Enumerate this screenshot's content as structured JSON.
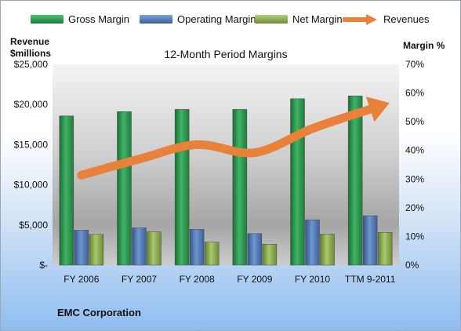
{
  "chart_data": {
    "type": "bar",
    "title": "12-Month Period Margins",
    "categories": [
      "FY 2006",
      "FY 2007",
      "FY 2008",
      "FY 2009",
      "FY 2010",
      "TTM 9-2011"
    ],
    "left_axis": {
      "label_line1": "Revenue",
      "label_line2": "$millions",
      "range": [
        0,
        25000
      ],
      "ticks": [
        "$-",
        "$5,000",
        "$10,000",
        "$15,000",
        "$20,000",
        "$25,000"
      ]
    },
    "right_axis": {
      "label": "Margin %",
      "range": [
        0,
        70
      ],
      "ticks": [
        "0%",
        "10%",
        "20%",
        "30%",
        "40%",
        "50%",
        "60%",
        "70%"
      ]
    },
    "series": [
      {
        "name": "Gross Margin",
        "type": "bar",
        "axis": "right",
        "color": "#2e9a50",
        "values": [
          52,
          53.5,
          54.3,
          54.3,
          58,
          59
        ]
      },
      {
        "name": "Operating Margin",
        "type": "bar",
        "axis": "right",
        "color": "#4f7dbf",
        "values": [
          12.2,
          13,
          12.5,
          11,
          15.8,
          17.2
        ]
      },
      {
        "name": "Net Margin",
        "type": "bar",
        "axis": "right",
        "color": "#8eb04f",
        "values": [
          10.7,
          11.6,
          8,
          7.3,
          10.8,
          11.4
        ]
      },
      {
        "name": "Revenues",
        "type": "line",
        "axis": "left",
        "color": "#e8823a",
        "values": [
          11200,
          13200,
          15000,
          14000,
          17000,
          19400
        ]
      }
    ],
    "grid": false,
    "legend_position": "top"
  },
  "footer": {
    "company": "EMC Corporation"
  }
}
